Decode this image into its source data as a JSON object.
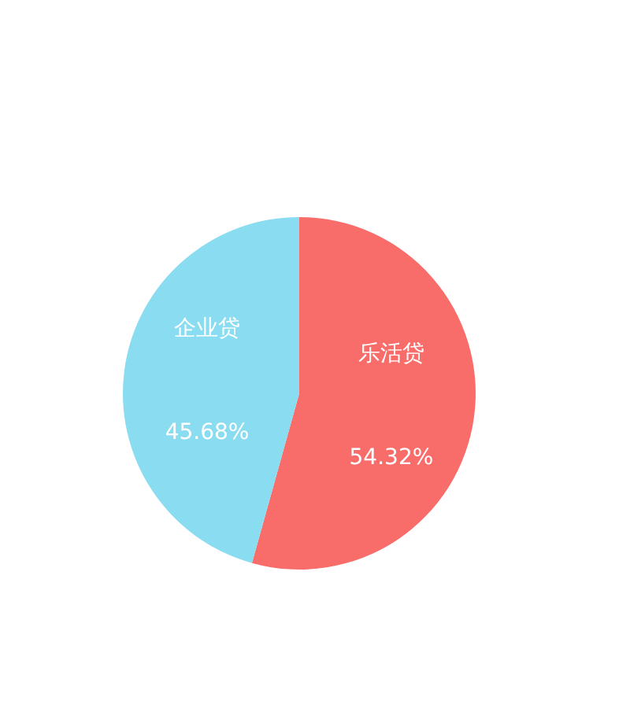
{
  "chart_data": {
    "type": "pie",
    "categories": [
      "乐活贷",
      "企业贷"
    ],
    "values": [
      54.32,
      45.68
    ],
    "colors": [
      "#f86d6a",
      "#8adcf0"
    ],
    "value_labels": [
      "54.32%",
      "45.68%"
    ]
  }
}
